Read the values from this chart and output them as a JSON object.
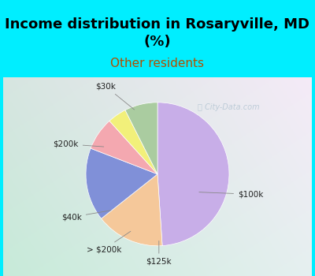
{
  "title": "Income distribution in Rosaryville, MD\n(%)",
  "subtitle": "Other residents",
  "labels": [
    "$100k",
    "$30k",
    "$200k",
    "$40k",
    "> $200k",
    "$125k"
  ],
  "values": [
    46.0,
    14.5,
    15.5,
    7.0,
    4.0,
    7.0
  ],
  "colors": [
    "#c8aee8",
    "#f5c89a",
    "#8090d8",
    "#f4a8b0",
    "#f2f07a",
    "#aacca0"
  ],
  "background_top": "#00eeff",
  "chart_bg_left": "#d0ede0",
  "chart_bg_right": "#e8f4f8",
  "title_fontsize": 13,
  "subtitle_fontsize": 11,
  "subtitle_color": "#b05000",
  "watermark_color": "#a0b8c8",
  "watermark_alpha": 0.6
}
